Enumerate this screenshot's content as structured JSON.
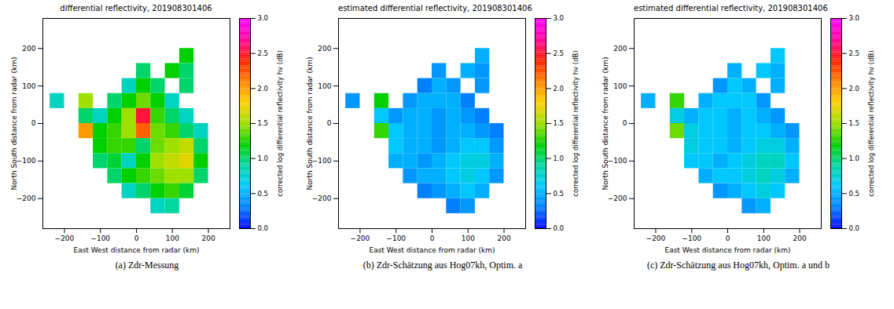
{
  "chart_data": [
    {
      "type": "heatmap",
      "title": "differential reflectivity, 201908301406",
      "x_label": "East West distance from radar (km)",
      "y_label": "North South distance from radar (km)",
      "xlim": [
        -260,
        260
      ],
      "ylim": [
        -280,
        280
      ],
      "xticks": [
        -200,
        -100,
        0,
        100,
        200
      ],
      "yticks": [
        -200,
        -100,
        0,
        100,
        200
      ],
      "x": [
        -220,
        -180,
        -140,
        -100,
        -60,
        -20,
        20,
        60,
        100,
        140,
        180,
        220
      ],
      "y": [
        260,
        220,
        180,
        140,
        100,
        60,
        20,
        -20,
        -60,
        -100,
        -140,
        -180,
        -220,
        -260
      ],
      "cells": [
        [
          null,
          null,
          null,
          null,
          null,
          null,
          null,
          null,
          null,
          null,
          null,
          null
        ],
        [
          null,
          null,
          null,
          null,
          null,
          null,
          null,
          null,
          null,
          null,
          null,
          null
        ],
        [
          null,
          null,
          null,
          null,
          null,
          null,
          null,
          null,
          null,
          1.2,
          null,
          null
        ],
        [
          null,
          null,
          null,
          null,
          null,
          null,
          1.0,
          null,
          1.2,
          1.0,
          null,
          null
        ],
        [
          null,
          null,
          null,
          null,
          null,
          0.8,
          1.2,
          1.0,
          null,
          1.0,
          null,
          null
        ],
        [
          0.8,
          null,
          1.5,
          null,
          1.0,
          1.2,
          1.4,
          1.2,
          0.8,
          null,
          null,
          null
        ],
        [
          null,
          null,
          1.0,
          0.8,
          1.2,
          1.5,
          2.5,
          1.3,
          1.0,
          0.8,
          null,
          null
        ],
        [
          null,
          null,
          2.0,
          1.2,
          1.3,
          1.5,
          2.2,
          1.4,
          1.3,
          1.0,
          0.8,
          null
        ],
        [
          null,
          null,
          null,
          1.2,
          1.3,
          1.3,
          1.0,
          1.4,
          1.5,
          1.6,
          1.0,
          null
        ],
        [
          null,
          null,
          null,
          1.0,
          1.1,
          0.8,
          1.2,
          1.5,
          1.6,
          1.7,
          1.2,
          null
        ],
        [
          null,
          null,
          null,
          null,
          1.0,
          1.2,
          1.3,
          1.4,
          1.5,
          1.5,
          1.0,
          null
        ],
        [
          null,
          null,
          null,
          null,
          null,
          0.8,
          1.0,
          1.2,
          1.3,
          1.1,
          null,
          null
        ],
        [
          null,
          null,
          null,
          null,
          null,
          null,
          null,
          0.8,
          0.9,
          null,
          null,
          null
        ],
        [
          null,
          null,
          null,
          null,
          null,
          null,
          null,
          null,
          null,
          null,
          null,
          null
        ]
      ],
      "colorbar": {
        "label": "corrected log differential reflectivity hv (dB)",
        "range": [
          0,
          3
        ],
        "ticks": [
          {
            "value": 0,
            "label": "0.0"
          },
          {
            "value": 0.5,
            "label": "0.5"
          },
          {
            "value": 1,
            "label": "1.0"
          },
          {
            "value": 1.5,
            "label": "1.5"
          },
          {
            "value": 2,
            "label": "2.0"
          },
          {
            "value": 2.5,
            "label": "2.5"
          },
          {
            "value": 3,
            "label": "3.0"
          }
        ],
        "colors": [
          "#0000ff",
          "#0080ff",
          "#00c8ff",
          "#00d8a0",
          "#00d000",
          "#a0e000",
          "#ffd000",
          "#ff8000",
          "#ff2000",
          "#ff00a0",
          "#ff00ff"
        ]
      },
      "caption": "(a) Zdr-Messung"
    },
    {
      "type": "heatmap",
      "title": "estimated differential reflectivity, 201908301406",
      "x_label": "East West distance from radar (km)",
      "y_label": "North South distance from radar (km)",
      "xlim": [
        -260,
        260
      ],
      "ylim": [
        -280,
        280
      ],
      "xticks": [
        -200,
        -100,
        0,
        100,
        200
      ],
      "yticks": [
        -200,
        -100,
        0,
        100,
        200
      ],
      "x": [
        -220,
        -180,
        -140,
        -100,
        -60,
        -20,
        20,
        60,
        100,
        140,
        180,
        220
      ],
      "y": [
        260,
        220,
        180,
        140,
        100,
        60,
        20,
        -20,
        -60,
        -100,
        -140,
        -180,
        -220,
        -260
      ],
      "cells": [
        [
          null,
          null,
          null,
          null,
          null,
          null,
          null,
          null,
          null,
          null,
          null,
          null
        ],
        [
          null,
          null,
          null,
          null,
          null,
          null,
          null,
          null,
          null,
          null,
          null,
          null
        ],
        [
          null,
          null,
          null,
          null,
          null,
          null,
          null,
          null,
          null,
          0.5,
          null,
          null
        ],
        [
          null,
          null,
          null,
          null,
          null,
          null,
          0.4,
          null,
          0.5,
          0.4,
          null,
          null
        ],
        [
          null,
          null,
          null,
          null,
          null,
          0.3,
          0.5,
          0.4,
          null,
          0.4,
          null,
          null
        ],
        [
          0.4,
          null,
          1.2,
          null,
          0.4,
          0.5,
          0.5,
          0.5,
          0.3,
          null,
          null,
          null
        ],
        [
          null,
          null,
          0.6,
          0.4,
          0.5,
          0.5,
          0.4,
          0.5,
          0.4,
          0.3,
          null,
          null
        ],
        [
          null,
          null,
          1.3,
          0.6,
          0.5,
          0.5,
          0.4,
          0.5,
          0.5,
          0.4,
          0.3,
          null
        ],
        [
          null,
          null,
          null,
          0.6,
          0.5,
          0.5,
          0.4,
          0.5,
          0.6,
          0.6,
          0.4,
          null
        ],
        [
          null,
          null,
          null,
          0.5,
          0.5,
          0.4,
          0.5,
          0.6,
          0.7,
          0.7,
          0.5,
          null
        ],
        [
          null,
          null,
          null,
          null,
          0.4,
          0.5,
          0.5,
          0.6,
          0.7,
          0.6,
          0.4,
          null
        ],
        [
          null,
          null,
          null,
          null,
          null,
          0.3,
          0.4,
          0.5,
          0.6,
          0.5,
          null,
          null
        ],
        [
          null,
          null,
          null,
          null,
          null,
          null,
          null,
          0.3,
          0.4,
          null,
          null,
          null
        ],
        [
          null,
          null,
          null,
          null,
          null,
          null,
          null,
          null,
          null,
          null,
          null,
          null
        ]
      ],
      "colorbar": {
        "label": "corrected log differential reflectivity hv (dB)",
        "range": [
          0,
          3
        ],
        "ticks": [
          {
            "value": 0,
            "label": "0.0"
          },
          {
            "value": 0.5,
            "label": "0.5"
          },
          {
            "value": 1,
            "label": "1.0"
          },
          {
            "value": 1.5,
            "label": "1.5"
          },
          {
            "value": 2,
            "label": "2.0"
          },
          {
            "value": 2.5,
            "label": "2.5"
          },
          {
            "value": 3,
            "label": "3.0"
          }
        ],
        "colors": [
          "#0000ff",
          "#0080ff",
          "#00c8ff",
          "#00d8a0",
          "#00d000",
          "#a0e000",
          "#ffd000",
          "#ff8000",
          "#ff2000",
          "#ff00a0",
          "#ff00ff"
        ]
      },
      "caption": "(b) Zdr-Schätzung aus Hog07kh, Optim. a"
    },
    {
      "type": "heatmap",
      "title": "estimated differential reflectivity, 201908301406",
      "x_label": "East West distance from radar (km)",
      "y_label": "North South distance from radar (km)",
      "xlim": [
        -260,
        260
      ],
      "ylim": [
        -280,
        280
      ],
      "xticks": [
        -200,
        -100,
        0,
        100,
        200
      ],
      "yticks": [
        -200,
        -100,
        0,
        100,
        200
      ],
      "x": [
        -220,
        -180,
        -140,
        -100,
        -60,
        -20,
        20,
        60,
        100,
        140,
        180,
        220
      ],
      "y": [
        260,
        220,
        180,
        140,
        100,
        60,
        20,
        -20,
        -60,
        -100,
        -140,
        -180,
        -220,
        -260
      ],
      "cells": [
        [
          null,
          null,
          null,
          null,
          null,
          null,
          null,
          null,
          null,
          null,
          null,
          null
        ],
        [
          null,
          null,
          null,
          null,
          null,
          null,
          null,
          null,
          null,
          null,
          null,
          null
        ],
        [
          null,
          null,
          null,
          null,
          null,
          null,
          null,
          null,
          null,
          0.6,
          null,
          null
        ],
        [
          null,
          null,
          null,
          null,
          null,
          null,
          0.5,
          null,
          0.6,
          0.5,
          null,
          null
        ],
        [
          null,
          null,
          null,
          null,
          null,
          0.4,
          0.6,
          0.5,
          null,
          0.5,
          null,
          null
        ],
        [
          0.5,
          null,
          1.3,
          null,
          0.5,
          0.6,
          0.6,
          0.6,
          0.4,
          null,
          null,
          null
        ],
        [
          null,
          null,
          0.7,
          0.5,
          0.6,
          0.6,
          0.5,
          0.6,
          0.5,
          0.4,
          null,
          null
        ],
        [
          null,
          null,
          1.4,
          0.7,
          0.6,
          0.6,
          0.5,
          0.6,
          0.6,
          0.5,
          0.4,
          null
        ],
        [
          null,
          null,
          null,
          0.7,
          0.6,
          0.6,
          0.5,
          0.6,
          0.7,
          0.7,
          0.5,
          null
        ],
        [
          null,
          null,
          null,
          0.6,
          0.6,
          0.5,
          0.6,
          0.7,
          0.8,
          0.8,
          0.6,
          null
        ],
        [
          null,
          null,
          null,
          null,
          0.5,
          0.6,
          0.6,
          0.7,
          0.8,
          0.7,
          0.5,
          null
        ],
        [
          null,
          null,
          null,
          null,
          null,
          0.4,
          0.5,
          0.6,
          0.7,
          0.6,
          null,
          null
        ],
        [
          null,
          null,
          null,
          null,
          null,
          null,
          null,
          0.4,
          0.5,
          null,
          null,
          null
        ],
        [
          null,
          null,
          null,
          null,
          null,
          null,
          null,
          null,
          null,
          null,
          null,
          null
        ]
      ],
      "colorbar": {
        "label": "corrected log differential reflectivity hv (dB)",
        "range": [
          0,
          3
        ],
        "ticks": [
          {
            "value": 0,
            "label": "0.0"
          },
          {
            "value": 0.5,
            "label": "0.5"
          },
          {
            "value": 1,
            "label": "1.0"
          },
          {
            "value": 1.5,
            "label": "1.5"
          },
          {
            "value": 2,
            "label": "2.0"
          },
          {
            "value": 2.5,
            "label": "2.5"
          },
          {
            "value": 3,
            "label": "3.0"
          }
        ],
        "colors": [
          "#0000ff",
          "#0080ff",
          "#00c8ff",
          "#00d8a0",
          "#00d000",
          "#a0e000",
          "#ffd000",
          "#ff8000",
          "#ff2000",
          "#ff00a0",
          "#ff00ff"
        ]
      },
      "caption": "(c) Zdr-Schätzung aus Hog07kh, Optim. a und b"
    }
  ]
}
